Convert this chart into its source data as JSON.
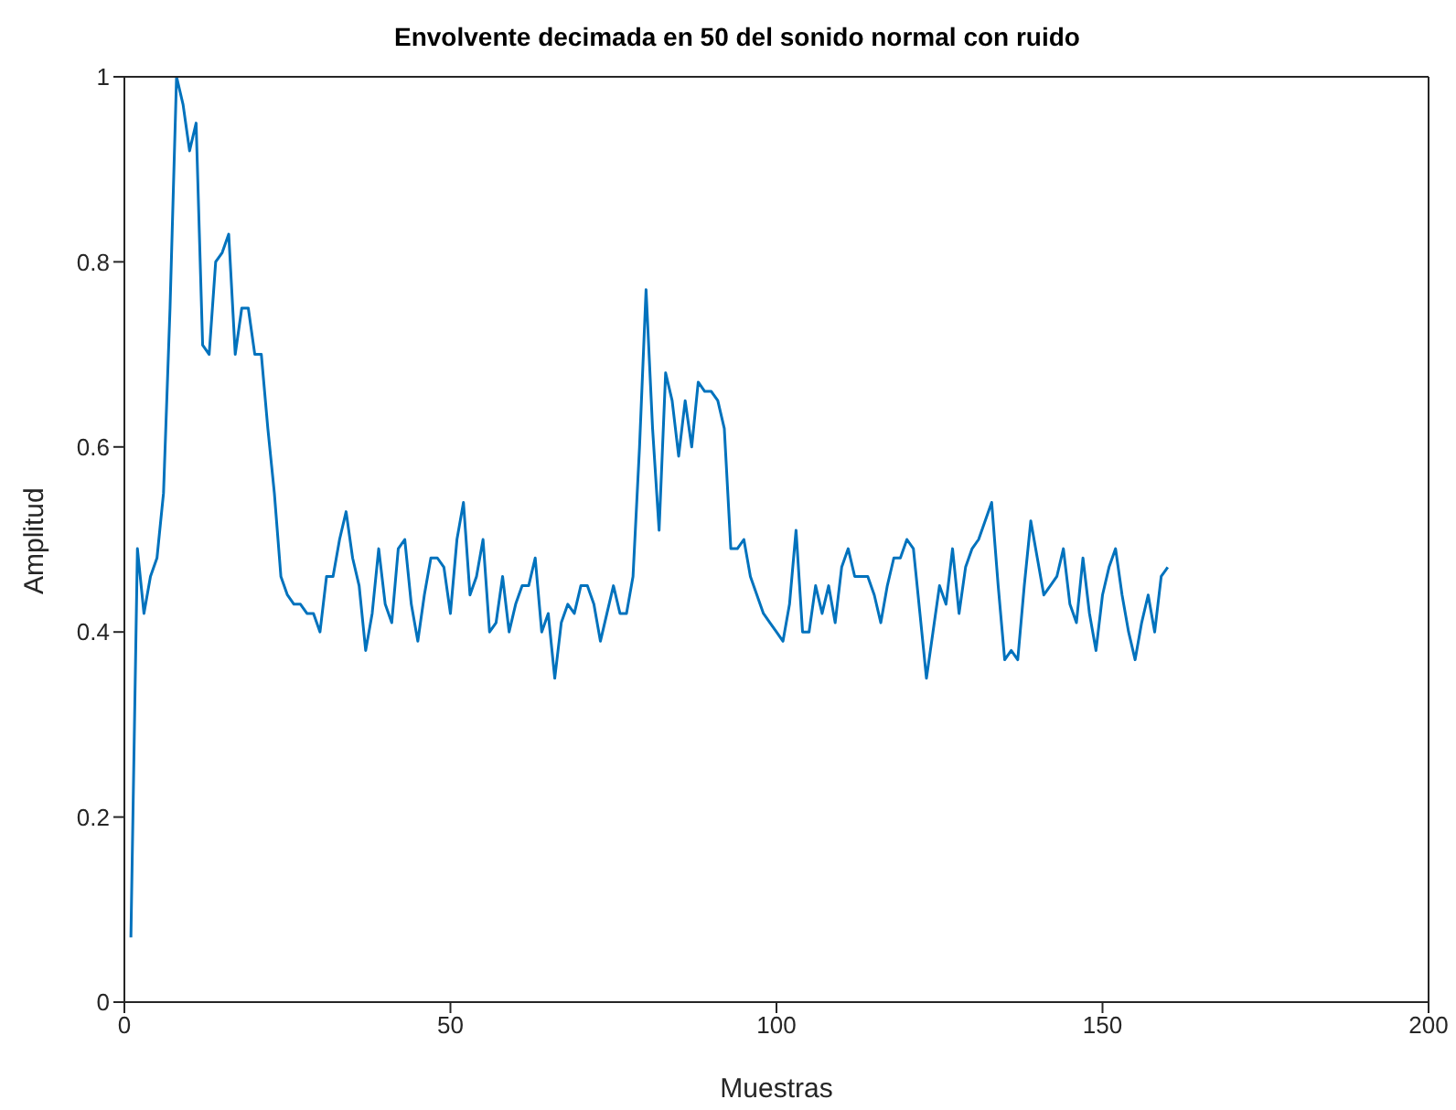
{
  "chart_data": {
    "type": "line",
    "title": "Envolvente decimada en 50 del sonido normal con ruido",
    "xlabel": "Muestras",
    "ylabel": "Amplitud",
    "x": [
      1,
      2,
      3,
      4,
      5,
      6,
      7,
      8,
      9,
      10,
      11,
      12,
      13,
      14,
      15,
      16,
      17,
      18,
      19,
      20,
      21,
      22,
      23,
      24,
      25,
      26,
      27,
      28,
      29,
      30,
      31,
      32,
      33,
      34,
      35,
      36,
      37,
      38,
      39,
      40,
      41,
      42,
      43,
      44,
      45,
      46,
      47,
      48,
      49,
      50,
      51,
      52,
      53,
      54,
      55,
      56,
      57,
      58,
      59,
      60,
      61,
      62,
      63,
      64,
      65,
      66,
      67,
      68,
      69,
      70,
      71,
      72,
      73,
      74,
      75,
      76,
      77,
      78,
      79,
      80,
      81,
      82,
      83,
      84,
      85,
      86,
      87,
      88,
      89,
      90,
      91,
      92,
      93,
      94,
      95,
      96,
      97,
      98,
      99,
      100,
      101,
      102,
      103,
      104,
      105,
      106,
      107,
      108,
      109,
      110,
      111,
      112,
      113,
      114,
      115,
      116,
      117,
      118,
      119,
      120,
      121,
      122,
      123,
      124,
      125,
      126,
      127,
      128,
      129,
      130,
      131,
      132,
      133,
      134,
      135,
      136,
      137,
      138,
      139,
      140,
      141,
      142,
      143,
      144,
      145,
      146,
      147,
      148,
      149,
      150,
      151,
      152,
      153,
      154,
      155,
      156,
      157,
      158,
      159,
      160
    ],
    "series": [
      {
        "color": "#0072bd",
        "values": [
          0.07,
          0.49,
          0.42,
          0.46,
          0.48,
          0.55,
          0.75,
          1.0,
          0.97,
          0.92,
          0.95,
          0.71,
          0.7,
          0.8,
          0.81,
          0.83,
          0.7,
          0.75,
          0.75,
          0.7,
          0.7,
          0.62,
          0.55,
          0.46,
          0.44,
          0.43,
          0.43,
          0.42,
          0.42,
          0.4,
          0.46,
          0.46,
          0.5,
          0.53,
          0.48,
          0.45,
          0.38,
          0.42,
          0.49,
          0.43,
          0.41,
          0.49,
          0.5,
          0.43,
          0.39,
          0.44,
          0.48,
          0.48,
          0.47,
          0.42,
          0.5,
          0.54,
          0.44,
          0.46,
          0.5,
          0.4,
          0.41,
          0.46,
          0.4,
          0.43,
          0.45,
          0.45,
          0.48,
          0.4,
          0.42,
          0.35,
          0.41,
          0.43,
          0.42,
          0.45,
          0.45,
          0.43,
          0.39,
          0.42,
          0.45,
          0.42,
          0.42,
          0.46,
          0.6,
          0.77,
          0.62,
          0.51,
          0.68,
          0.65,
          0.59,
          0.65,
          0.6,
          0.67,
          0.66,
          0.66,
          0.65,
          0.62,
          0.49,
          0.49,
          0.5,
          0.46,
          0.44,
          0.42,
          0.41,
          0.4,
          0.39,
          0.43,
          0.51,
          0.4,
          0.4,
          0.45,
          0.42,
          0.45,
          0.41,
          0.47,
          0.49,
          0.46,
          0.46,
          0.46,
          0.44,
          0.41,
          0.45,
          0.48,
          0.48,
          0.5,
          0.49,
          0.42,
          0.35,
          0.4,
          0.45,
          0.43,
          0.49,
          0.42,
          0.47,
          0.49,
          0.5,
          0.52,
          0.54,
          0.45,
          0.37,
          0.38,
          0.37,
          0.45,
          0.52,
          0.48,
          0.44,
          0.45,
          0.46,
          0.49,
          0.43,
          0.41,
          0.48,
          0.42,
          0.38,
          0.44,
          0.47,
          0.49,
          0.44,
          0.4,
          0.37,
          0.41,
          0.44,
          0.4,
          0.46,
          0.47
        ]
      }
    ],
    "xlim": [
      0,
      200
    ],
    "xticks": [
      0,
      50,
      100,
      150,
      200
    ],
    "ylim": [
      0,
      1
    ],
    "yticks": [
      0,
      0.2,
      0.4,
      0.6,
      0.8,
      1
    ],
    "grid": false,
    "legend": false,
    "marker": "none",
    "line_style": "solid"
  }
}
